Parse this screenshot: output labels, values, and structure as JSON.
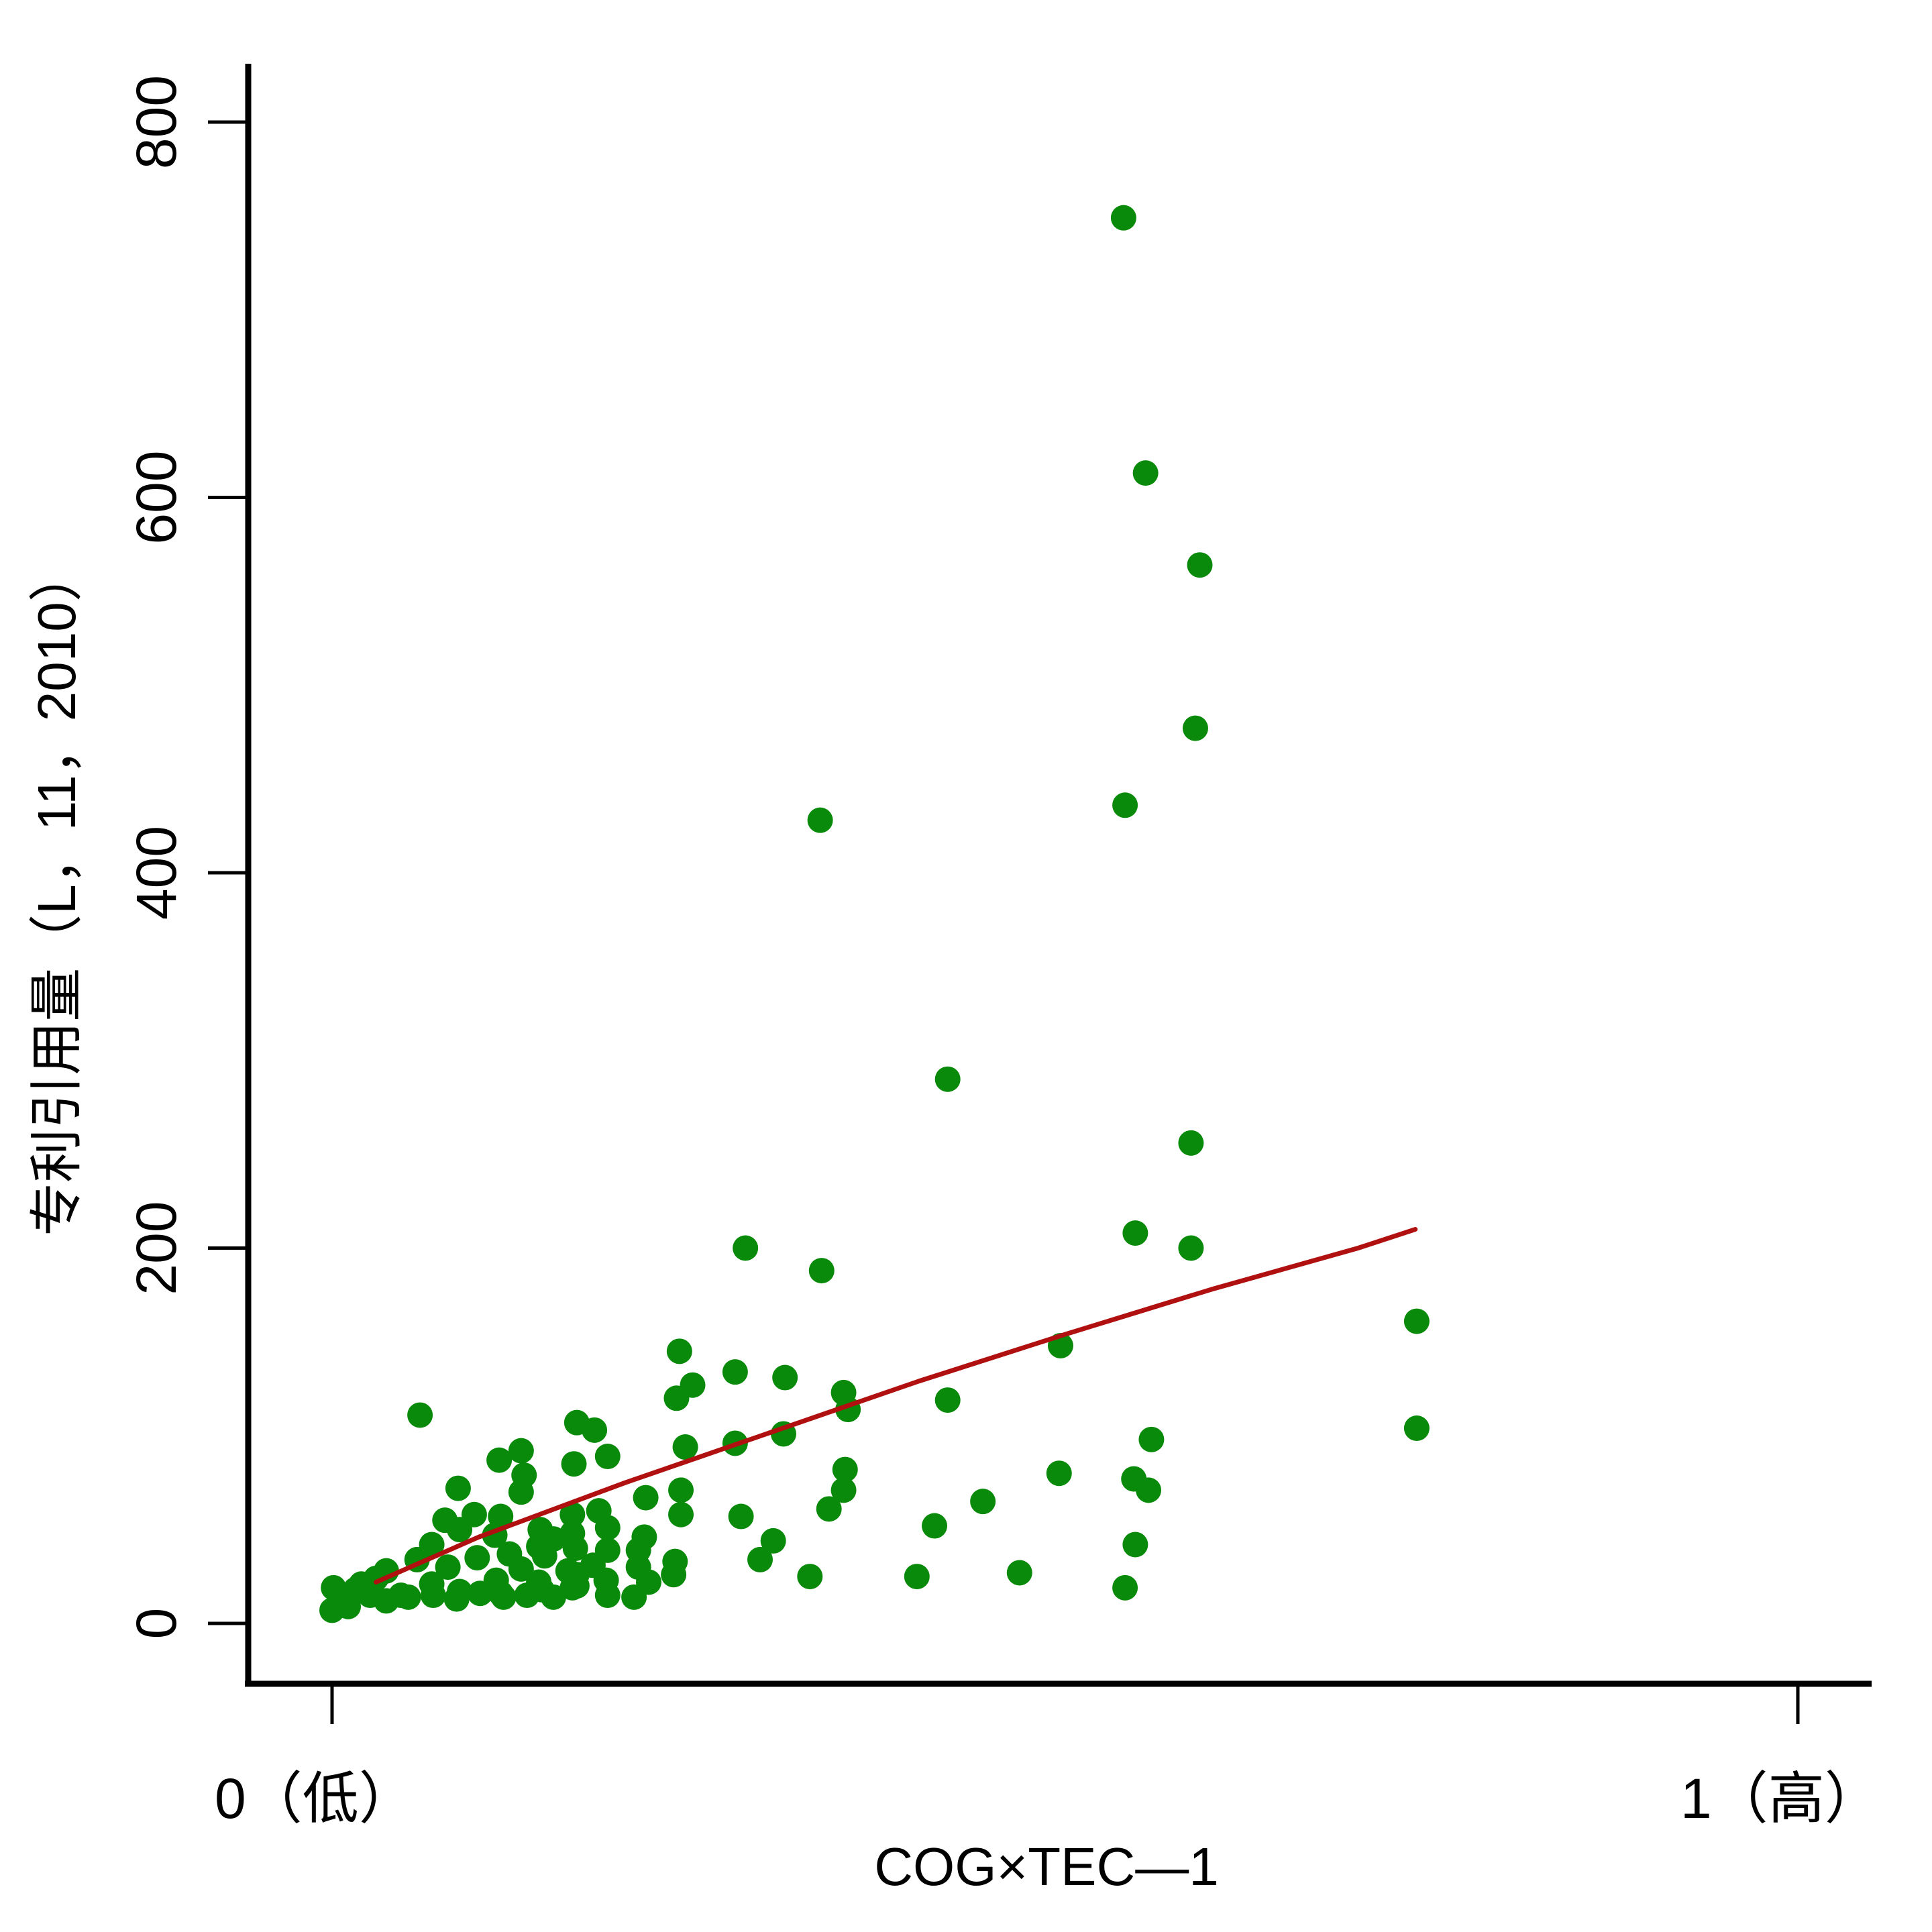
{
  "chart_data": {
    "type": "scatter",
    "title": "",
    "xlabel": "COG×TEC—1",
    "ylabel": "专利引用量（L，11，2010）",
    "xlim": [
      0,
      1
    ],
    "ylim": [
      0,
      800
    ],
    "x_ticks": [
      {
        "value": 0,
        "label": "0（低）"
      },
      {
        "value": 1,
        "label": "1（高）"
      }
    ],
    "y_ticks": [
      {
        "value": 0,
        "label": "0"
      },
      {
        "value": 200,
        "label": "200"
      },
      {
        "value": 400,
        "label": "400"
      },
      {
        "value": 600,
        "label": "600"
      },
      {
        "value": 800,
        "label": "800"
      }
    ],
    "grid": false,
    "legend": "none",
    "colors": {
      "points": "#0a8a0a",
      "fit_line": "#b01010",
      "axes": "#000000"
    },
    "series": [
      {
        "values": [
          {
            "x": 0.54,
            "y": 749
          },
          {
            "x": 0.555,
            "y": 613
          },
          {
            "x": 0.592,
            "y": 564
          },
          {
            "x": 0.589,
            "y": 477
          },
          {
            "x": 0.541,
            "y": 436
          },
          {
            "x": 0.333,
            "y": 428
          },
          {
            "x": 0.42,
            "y": 290
          },
          {
            "x": 0.586,
            "y": 256
          },
          {
            "x": 0.548,
            "y": 208
          },
          {
            "x": 0.586,
            "y": 200
          },
          {
            "x": 0.282,
            "y": 200
          },
          {
            "x": 0.334,
            "y": 188
          },
          {
            "x": 0.74,
            "y": 161
          },
          {
            "x": 0.497,
            "y": 148
          },
          {
            "x": 0.237,
            "y": 145
          },
          {
            "x": 0.275,
            "y": 134
          },
          {
            "x": 0.309,
            "y": 131
          },
          {
            "x": 0.246,
            "y": 127
          },
          {
            "x": 0.349,
            "y": 123
          },
          {
            "x": 0.235,
            "y": 120
          },
          {
            "x": 0.42,
            "y": 119
          },
          {
            "x": 0.352,
            "y": 114
          },
          {
            "x": 0.06,
            "y": 111
          },
          {
            "x": 0.167,
            "y": 107
          },
          {
            "x": 0.179,
            "y": 103
          },
          {
            "x": 0.74,
            "y": 104
          },
          {
            "x": 0.308,
            "y": 101
          },
          {
            "x": 0.559,
            "y": 98
          },
          {
            "x": 0.275,
            "y": 96
          },
          {
            "x": 0.241,
            "y": 94
          },
          {
            "x": 0.129,
            "y": 92
          },
          {
            "x": 0.188,
            "y": 89
          },
          {
            "x": 0.114,
            "y": 87
          },
          {
            "x": 0.165,
            "y": 85
          },
          {
            "x": 0.35,
            "y": 82
          },
          {
            "x": 0.496,
            "y": 80
          },
          {
            "x": 0.131,
            "y": 79
          },
          {
            "x": 0.547,
            "y": 77
          },
          {
            "x": 0.086,
            "y": 72
          },
          {
            "x": 0.557,
            "y": 71
          },
          {
            "x": 0.349,
            "y": 71
          },
          {
            "x": 0.238,
            "y": 71
          },
          {
            "x": 0.129,
            "y": 70
          },
          {
            "x": 0.214,
            "y": 67
          },
          {
            "x": 0.444,
            "y": 65
          },
          {
            "x": 0.339,
            "y": 61
          },
          {
            "x": 0.182,
            "y": 60
          },
          {
            "x": 0.097,
            "y": 58
          },
          {
            "x": 0.164,
            "y": 58
          },
          {
            "x": 0.238,
            "y": 58
          },
          {
            "x": 0.279,
            "y": 57
          },
          {
            "x": 0.115,
            "y": 57
          },
          {
            "x": 0.077,
            "y": 55
          },
          {
            "x": 0.411,
            "y": 52
          },
          {
            "x": 0.188,
            "y": 51
          },
          {
            "x": 0.087,
            "y": 50
          },
          {
            "x": 0.142,
            "y": 50
          },
          {
            "x": 0.164,
            "y": 48
          },
          {
            "x": 0.111,
            "y": 47
          },
          {
            "x": 0.213,
            "y": 46
          },
          {
            "x": 0.151,
            "y": 45
          },
          {
            "x": 0.301,
            "y": 44
          },
          {
            "x": 0.548,
            "y": 42
          },
          {
            "x": 0.068,
            "y": 42
          },
          {
            "x": 0.141,
            "y": 41
          },
          {
            "x": 0.166,
            "y": 40
          },
          {
            "x": 0.188,
            "y": 39
          },
          {
            "x": 0.209,
            "y": 39
          },
          {
            "x": 0.121,
            "y": 37
          },
          {
            "x": 0.145,
            "y": 36
          },
          {
            "x": 0.099,
            "y": 35
          },
          {
            "x": 0.292,
            "y": 34
          },
          {
            "x": 0.058,
            "y": 34
          },
          {
            "x": 0.234,
            "y": 33
          },
          {
            "x": 0.178,
            "y": 31
          },
          {
            "x": 0.209,
            "y": 30
          },
          {
            "x": 0.079,
            "y": 30
          },
          {
            "x": 0.129,
            "y": 29
          },
          {
            "x": 0.161,
            "y": 28
          },
          {
            "x": 0.037,
            "y": 28
          },
          {
            "x": 0.469,
            "y": 27
          },
          {
            "x": 0.233,
            "y": 26
          },
          {
            "x": 0.167,
            "y": 26
          },
          {
            "x": 0.326,
            "y": 25
          },
          {
            "x": 0.399,
            "y": 25
          },
          {
            "x": 0.03,
            "y": 24
          },
          {
            "x": 0.112,
            "y": 23
          },
          {
            "x": 0.187,
            "y": 23
          },
          {
            "x": 0.141,
            "y": 22
          },
          {
            "x": 0.216,
            "y": 22
          },
          {
            "x": 0.02,
            "y": 21
          },
          {
            "x": 0.068,
            "y": 21
          },
          {
            "x": 0.167,
            "y": 20
          },
          {
            "x": 0.541,
            "y": 19
          },
          {
            "x": 0.001,
            "y": 19
          },
          {
            "x": 0.164,
            "y": 19
          },
          {
            "x": 0.016,
            "y": 18
          },
          {
            "x": 0.143,
            "y": 18
          },
          {
            "x": 0.087,
            "y": 17
          },
          {
            "x": 0.101,
            "y": 16
          },
          {
            "x": 0.115,
            "y": 16
          },
          {
            "x": 0.188,
            "y": 15
          },
          {
            "x": 0.026,
            "y": 15
          },
          {
            "x": 0.047,
            "y": 15
          },
          {
            "x": 0.069,
            "y": 15
          },
          {
            "x": 0.133,
            "y": 15
          },
          {
            "x": 0.206,
            "y": 14
          },
          {
            "x": 0.01,
            "y": 13
          },
          {
            "x": 0.052,
            "y": 14
          },
          {
            "x": 0.085,
            "y": 13
          },
          {
            "x": 0.037,
            "y": 12
          },
          {
            "x": 0.0,
            "y": 7
          },
          {
            "x": 0.011,
            "y": 9
          },
          {
            "x": 0.151,
            "y": 14
          },
          {
            "x": 0.117,
            "y": 14
          }
        ]
      }
    ],
    "fit_line": [
      {
        "x": 0.03,
        "y": 22
      },
      {
        "x": 0.1,
        "y": 46
      },
      {
        "x": 0.2,
        "y": 75
      },
      {
        "x": 0.3,
        "y": 102
      },
      {
        "x": 0.4,
        "y": 129
      },
      {
        "x": 0.5,
        "y": 154
      },
      {
        "x": 0.6,
        "y": 178
      },
      {
        "x": 0.7,
        "y": 200
      },
      {
        "x": 0.739,
        "y": 210
      }
    ]
  }
}
